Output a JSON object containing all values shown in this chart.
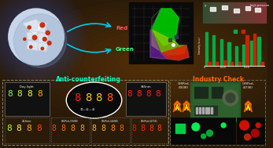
{
  "bg_color": "#2a1a08",
  "title_anticounterfeiting": "Anti-counterfeiting",
  "title_industry": "Industry Check",
  "label_red": "Red",
  "label_green": "Green",
  "bar_green": [
    0.95,
    0.85,
    0.75,
    0.65,
    0.55,
    0.6,
    0.7,
    0.8
  ],
  "bar_red": [
    0.1,
    0.1,
    0.15,
    0.1,
    0.1,
    0.85,
    0.9,
    0.1
  ],
  "seg_day": [
    "#88ff44",
    "#ccff44",
    "#ffff44",
    "#ffaa00"
  ],
  "seg_oval": [
    "#ff2200",
    "#ffcc00",
    "#ffcc00",
    "#ff6600"
  ],
  "seg_365nm": [
    "#ff2200",
    "#ff2200",
    "#ff2200",
    "#ff2200"
  ],
  "seg_254nm": [
    "#aaff44",
    "#ffff44",
    "#ffaa00",
    "#ff4400"
  ],
  "seg_300K_1": [
    "#ff4400",
    "#ff6600",
    "#ff8800",
    "#ffaa00"
  ],
  "seg_300K_2": [
    "#ff3300",
    "#ff5500",
    "#ff7700",
    "#ff9900"
  ],
  "seg_300K_3": [
    "#ff2200",
    "#ff4400",
    "#ff6600",
    "#ff8800"
  ],
  "seg_400K_1": [
    "#ffcc00",
    "#ffaa00",
    "#ff8800",
    "#ff6600"
  ],
  "seg_400K_2": [
    "#ffbb00",
    "#ff9900",
    "#ff7700",
    "#ff5500"
  ],
  "seg_400K_3": [
    "#ffaa00",
    "#ff8800",
    "#ff6600",
    "#ff4400"
  ],
  "seg_473K_1": [
    "#ff1100",
    "#ff2200",
    "#ff3300",
    "#ff4400"
  ],
  "seg_473K_2": [
    "#ff0000",
    "#ff1100",
    "#ff2200",
    "#ff3300"
  ],
  "seg_473K_3": [
    "#ff0000",
    "#ff0000",
    "#ff1100",
    "#ff2200"
  ],
  "sphere_color": "#c8d4e8",
  "sphere_glow": "#3366cc",
  "pcb_color": "#2a4a2a",
  "flame_outer": "#ff6600",
  "flame_inner": "#ffdd00",
  "green_sq": "#00cc44",
  "green_dot1": "#00ee55",
  "green_dot2": "#00aa33",
  "red_dot1": "#cc1100",
  "red_dot2": "#aa0000",
  "red_dot3": "#bb2200"
}
